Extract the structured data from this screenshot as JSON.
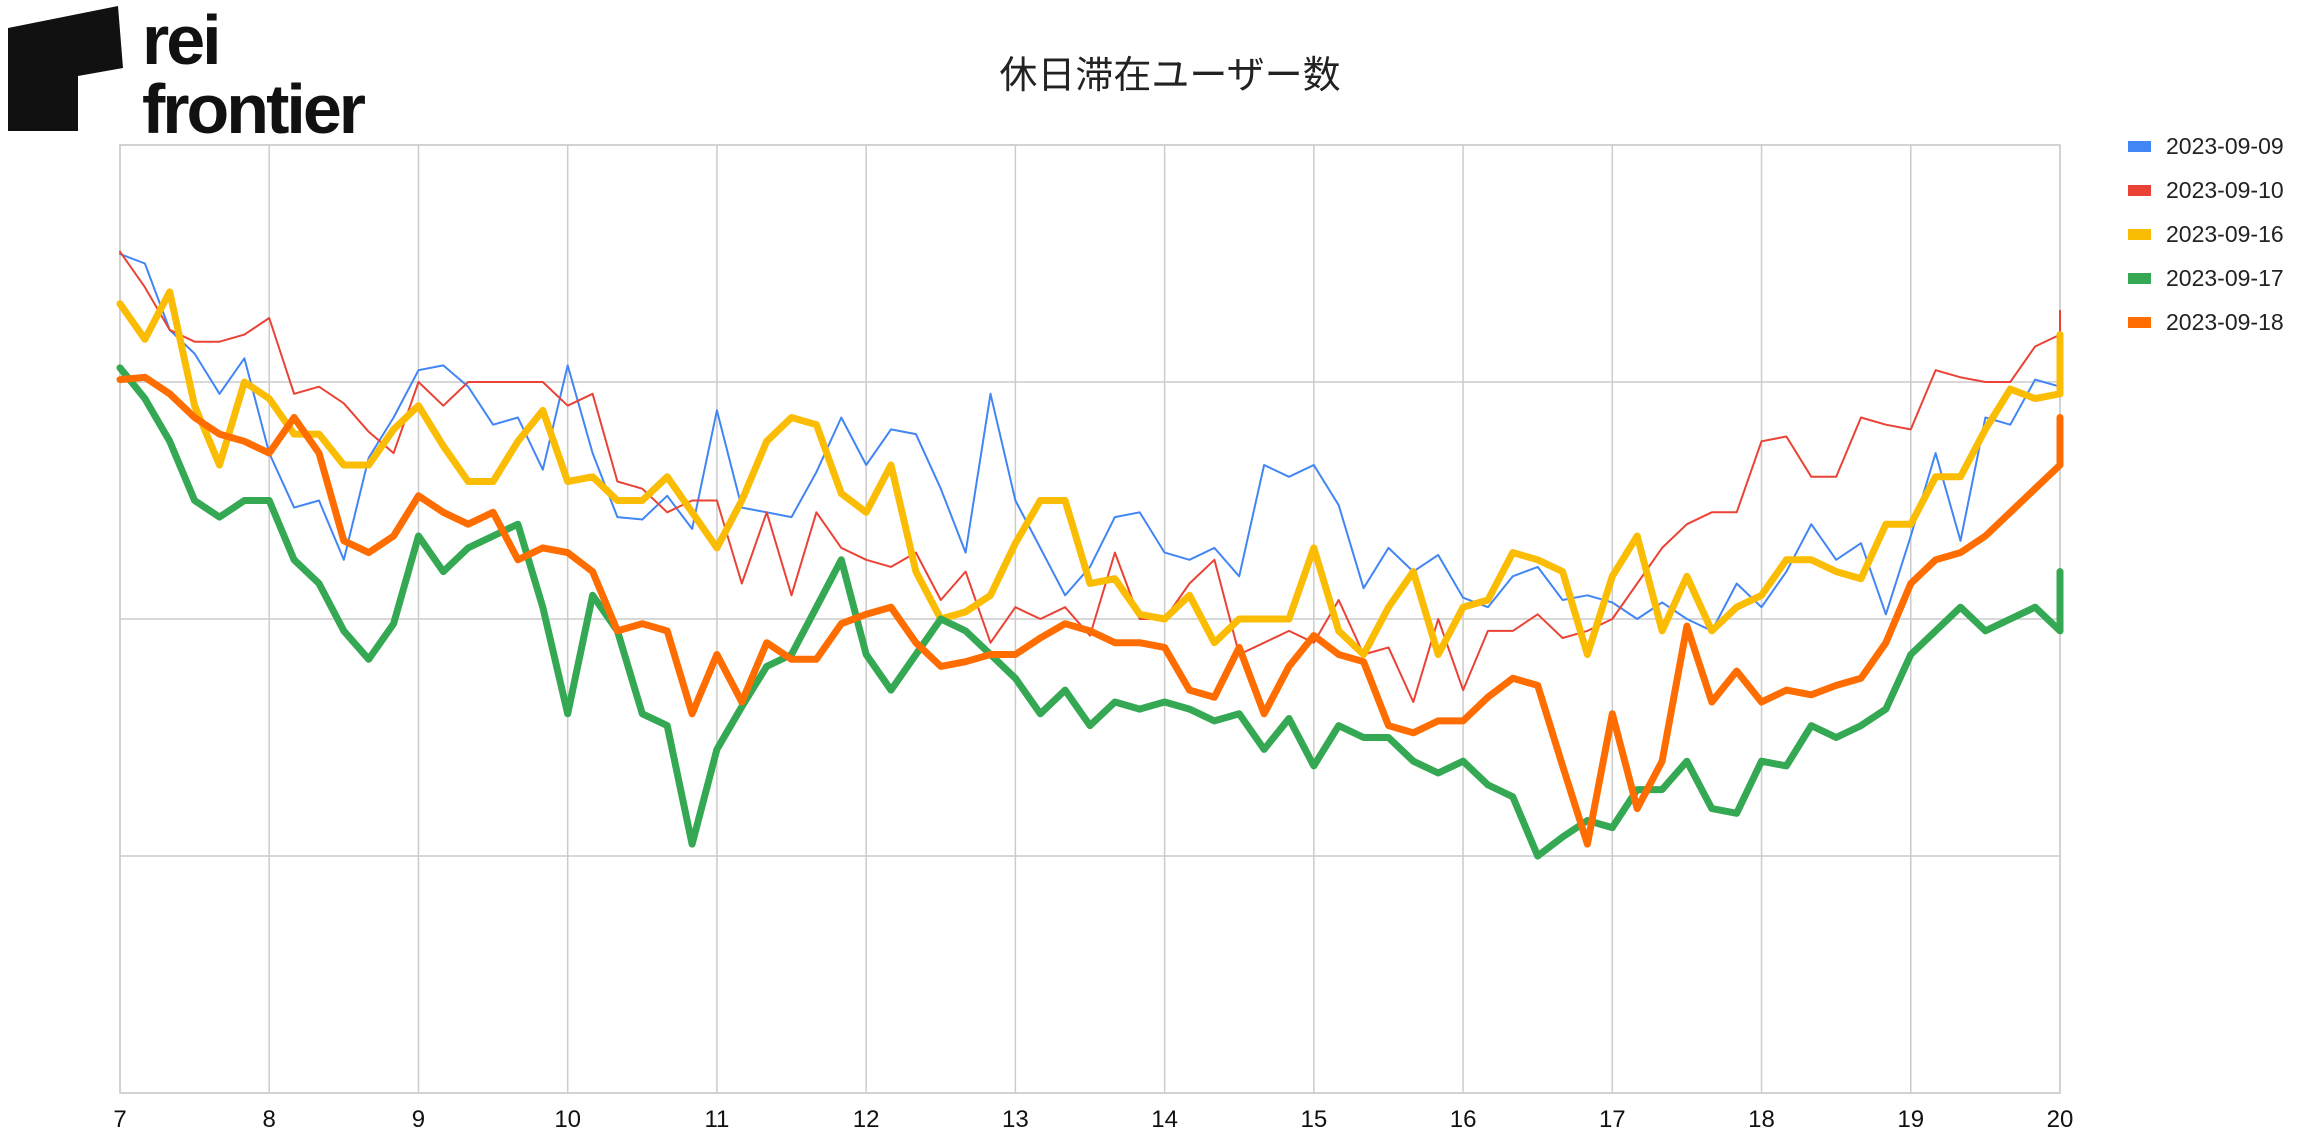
{
  "logo": {
    "line1": "rei",
    "line2": "frontier"
  },
  "chart_data": {
    "type": "line",
    "title": "休日滞在ユーザー数",
    "xlabel": "",
    "ylabel": "",
    "x_ticks": [
      7,
      8,
      9,
      10,
      11,
      12,
      13,
      14,
      15,
      16,
      17,
      18,
      19,
      20
    ],
    "xlim": [
      7,
      20
    ],
    "ylim": [
      0,
      4
    ],
    "grid": true,
    "y_tick_labels_shown": false,
    "legend_position": "right",
    "x_step": 0.16666667,
    "series": [
      {
        "name": "2023-09-09",
        "color": "#4285f4",
        "width": 2,
        "values": [
          3.54,
          3.5,
          3.22,
          3.12,
          2.95,
          3.1,
          2.7,
          2.47,
          2.5,
          2.25,
          2.68,
          2.85,
          3.05,
          3.07,
          2.98,
          2.82,
          2.85,
          2.63,
          3.07,
          2.7,
          2.43,
          2.42,
          2.52,
          2.38,
          2.88,
          2.47,
          2.45,
          2.43,
          2.62,
          2.85,
          2.65,
          2.8,
          2.78,
          2.55,
          2.28,
          2.95,
          2.5,
          2.3,
          2.1,
          2.22,
          2.43,
          2.45,
          2.28,
          2.25,
          2.3,
          2.18,
          2.65,
          2.6,
          2.65,
          2.48,
          2.13,
          2.3,
          2.2,
          2.27,
          2.09,
          2.05,
          2.18,
          2.22,
          2.08,
          2.1,
          2.07,
          2.0,
          2.07,
          2.0,
          1.95,
          2.15,
          2.05,
          2.2,
          2.4,
          2.25,
          2.32,
          2.02,
          2.35,
          2.7,
          2.33,
          2.85,
          2.82,
          3.01,
          2.98,
          3.3
        ]
      },
      {
        "name": "2023-09-10",
        "color": "#ea4335",
        "width": 2,
        "values": [
          3.55,
          3.4,
          3.22,
          3.17,
          3.17,
          3.2,
          3.27,
          2.95,
          2.98,
          2.91,
          2.79,
          2.7,
          3.0,
          2.9,
          3.0,
          3.0,
          3.0,
          3.0,
          2.9,
          2.95,
          2.58,
          2.55,
          2.45,
          2.5,
          2.5,
          2.15,
          2.45,
          2.1,
          2.45,
          2.3,
          2.25,
          2.22,
          2.28,
          2.08,
          2.2,
          1.9,
          2.05,
          2.0,
          2.05,
          1.93,
          2.28,
          2.0,
          2.0,
          2.15,
          2.25,
          1.85,
          1.9,
          1.95,
          1.9,
          2.08,
          1.85,
          1.88,
          1.65,
          2.0,
          1.7,
          1.95,
          1.95,
          2.02,
          1.92,
          1.95,
          2.0,
          2.15,
          2.3,
          2.4,
          2.45,
          2.45,
          2.75,
          2.77,
          2.6,
          2.6,
          2.85,
          2.82,
          2.8,
          3.05,
          3.02,
          3.0,
          3.0,
          3.15,
          3.2,
          3.3
        ]
      },
      {
        "name": "2023-09-16",
        "color": "#fbbc04",
        "width": 7,
        "values": [
          3.33,
          3.18,
          3.38,
          2.9,
          2.65,
          3.0,
          2.93,
          2.78,
          2.78,
          2.65,
          2.65,
          2.8,
          2.9,
          2.73,
          2.58,
          2.58,
          2.75,
          2.88,
          2.58,
          2.6,
          2.5,
          2.5,
          2.6,
          2.45,
          2.3,
          2.5,
          2.75,
          2.85,
          2.82,
          2.53,
          2.45,
          2.65,
          2.2,
          2.0,
          2.03,
          2.1,
          2.32,
          2.5,
          2.5,
          2.15,
          2.17,
          2.02,
          2.0,
          2.1,
          1.9,
          2.0,
          2.0,
          2.0,
          2.3,
          1.95,
          1.85,
          2.05,
          2.2,
          1.85,
          2.05,
          2.08,
          2.28,
          2.25,
          2.2,
          1.85,
          2.18,
          2.35,
          1.95,
          2.18,
          1.95,
          2.05,
          2.1,
          2.25,
          2.25,
          2.2,
          2.17,
          2.4,
          2.4,
          2.6,
          2.6,
          2.8,
          2.97,
          2.93,
          2.95,
          3.2
        ]
      },
      {
        "name": "2023-09-17",
        "color": "#34a853",
        "width": 7,
        "values": [
          3.06,
          2.93,
          2.75,
          2.5,
          2.43,
          2.5,
          2.5,
          2.25,
          2.15,
          1.95,
          1.83,
          1.98,
          2.35,
          2.2,
          2.3,
          2.35,
          2.4,
          2.05,
          1.6,
          2.1,
          1.95,
          1.6,
          1.55,
          1.05,
          1.45,
          1.63,
          1.8,
          1.85,
          2.05,
          2.25,
          1.85,
          1.7,
          1.85,
          2.0,
          1.95,
          1.85,
          1.75,
          1.6,
          1.7,
          1.55,
          1.65,
          1.62,
          1.65,
          1.62,
          1.57,
          1.6,
          1.45,
          1.58,
          1.38,
          1.55,
          1.5,
          1.5,
          1.4,
          1.35,
          1.4,
          1.3,
          1.25,
          1.0,
          1.08,
          1.15,
          1.12,
          1.28,
          1.28,
          1.4,
          1.2,
          1.18,
          1.4,
          1.38,
          1.55,
          1.5,
          1.55,
          1.62,
          1.85,
          1.95,
          2.05,
          1.95,
          2.0,
          2.05,
          1.95,
          2.2
        ]
      },
      {
        "name": "2023-09-18",
        "color": "#ff6d01",
        "width": 7,
        "values": [
          3.01,
          3.02,
          2.95,
          2.85,
          2.78,
          2.75,
          2.7,
          2.85,
          2.7,
          2.33,
          2.28,
          2.35,
          2.52,
          2.45,
          2.4,
          2.45,
          2.25,
          2.3,
          2.28,
          2.2,
          1.95,
          1.98,
          1.95,
          1.6,
          1.85,
          1.65,
          1.9,
          1.83,
          1.83,
          1.98,
          2.02,
          2.05,
          1.9,
          1.8,
          1.82,
          1.85,
          1.85,
          1.92,
          1.98,
          1.95,
          1.9,
          1.9,
          1.88,
          1.7,
          1.67,
          1.88,
          1.6,
          1.8,
          1.93,
          1.85,
          1.82,
          1.55,
          1.52,
          1.57,
          1.57,
          1.67,
          1.75,
          1.72,
          1.38,
          1.05,
          1.6,
          1.2,
          1.4,
          1.97,
          1.65,
          1.78,
          1.65,
          1.7,
          1.68,
          1.72,
          1.75,
          1.9,
          2.15,
          2.25,
          2.28,
          2.35,
          2.45,
          2.55,
          2.65,
          2.85
        ]
      }
    ]
  }
}
